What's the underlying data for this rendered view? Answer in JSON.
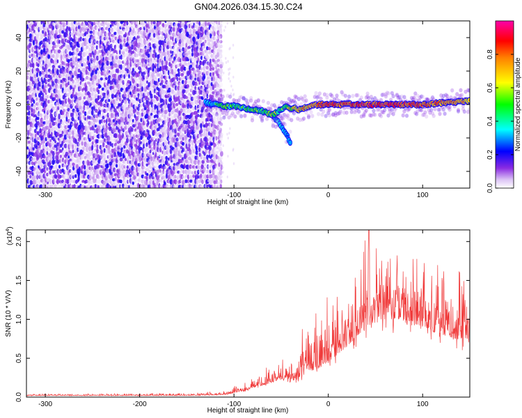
{
  "title": "GN04.2026.034.15.30.C24",
  "chart_data": [
    {
      "type": "heatmap",
      "xlabel": "Height of straight line (km)",
      "ylabel": "Frequency (Hz)",
      "xlim": [
        -320,
        150
      ],
      "ylim": [
        -50,
        50
      ],
      "xticks": [
        -300,
        -200,
        -100,
        0,
        100
      ],
      "yticks": [
        40,
        20,
        0,
        -20,
        -40
      ],
      "colorbar": {
        "label": "Normalized spectral amplitude",
        "range": [
          0,
          1
        ],
        "ticks": [
          "0.0",
          "0.2",
          "0.4",
          "0.6",
          "0.8"
        ],
        "colors": [
          "#ffffff",
          "#dcc4f5",
          "#8a2be2",
          "#0000ff",
          "#00ffff",
          "#00ff00",
          "#ffff00",
          "#ff8000",
          "#ff0000",
          "#ff00aa"
        ]
      },
      "noise_region_km": [
        -320,
        -115
      ],
      "ridge": {
        "x": [
          -130,
          -120,
          -110,
          -100,
          -90,
          -80,
          -70,
          -60,
          -55,
          -50,
          -45,
          -40,
          -30,
          -20,
          -10,
          0,
          10,
          20,
          40,
          60,
          80,
          100,
          120,
          150
        ],
        "freq_hz": [
          1,
          0,
          -1,
          -1,
          -2,
          -3,
          -4,
          -6,
          -5,
          -3,
          -1,
          -2,
          -3,
          -1,
          0,
          0,
          0,
          0,
          0,
          0,
          0,
          0,
          1,
          2
        ],
        "amplitude": [
          0.35,
          0.45,
          0.55,
          0.5,
          0.5,
          0.55,
          0.5,
          0.6,
          0.55,
          0.5,
          0.5,
          0.65,
          0.7,
          0.75,
          0.8,
          0.85,
          0.85,
          0.85,
          0.9,
          0.9,
          0.85,
          0.85,
          0.8,
          0.75
        ]
      },
      "branch": {
        "x": [
          -60,
          -55,
          -50,
          -45,
          -40
        ],
        "freq_hz": [
          -6,
          -9,
          -13,
          -17,
          -23
        ],
        "amplitude": [
          0.35,
          0.3,
          0.3,
          0.25,
          0.2
        ]
      }
    },
    {
      "type": "line",
      "xlabel": "Height of straight line (km)",
      "ylabel": "SNR (10 * V/V)",
      "multiplier_label": "(x10",
      "multiplier_exp": "4",
      "multiplier_close": ")",
      "xlim": [
        -320,
        150
      ],
      "ylim": [
        0,
        2.15
      ],
      "xticks": [
        -300,
        -200,
        -100,
        0,
        100
      ],
      "yticks": [
        "0.0",
        "0.5",
        "1.0",
        "1.5",
        "2.0"
      ],
      "ytick_values": [
        0,
        0.5,
        1.0,
        1.5,
        2.0
      ],
      "color": "#f03a3a",
      "envelope": {
        "x": [
          -320,
          -150,
          -110,
          -90,
          -70,
          -55,
          -45,
          -35,
          -25,
          -15,
          0,
          20,
          40,
          60,
          80,
          100,
          120,
          150
        ],
        "base": [
          0.02,
          0.02,
          0.03,
          0.08,
          0.15,
          0.2,
          0.25,
          0.2,
          0.3,
          0.35,
          0.45,
          0.65,
          0.9,
          1.0,
          1.0,
          0.9,
          0.8,
          0.7
        ],
        "peak": [
          0.04,
          0.05,
          0.08,
          0.2,
          0.38,
          0.45,
          0.55,
          0.5,
          1.05,
          1.2,
          1.45,
          1.7,
          2.05,
          1.8,
          1.85,
          1.75,
          1.7,
          1.6
        ]
      },
      "max_value": 2.15,
      "max_at_km": 43
    }
  ]
}
